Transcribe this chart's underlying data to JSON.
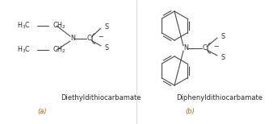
{
  "bg_color": "#ffffff",
  "text_color": "#2a2a2a",
  "label_color": "#b5651d",
  "fig_width": 3.38,
  "fig_height": 1.54,
  "dpi": 100,
  "label_a": "Diethyldithiocarbamate",
  "label_b": "Diphenyldithiocarbamate",
  "sub_a": "(a)",
  "sub_b": "(b)",
  "line_color": "#4a4a4a",
  "line_lw": 0.8,
  "chem_fontsize": 5.8,
  "label_fontsize": 6.0,
  "sub_fontsize": 6.0
}
